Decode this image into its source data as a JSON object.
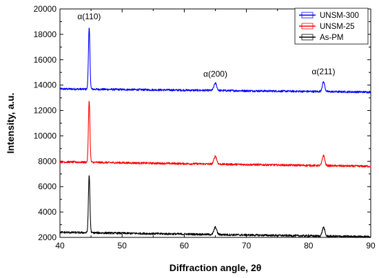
{
  "chart_data": {
    "type": "line",
    "title": "",
    "xlabel": "Diffraction angle, 2θ",
    "ylabel": "Intensity, a.u.",
    "xlim": [
      40,
      90
    ],
    "ylim": [
      2000,
      20000
    ],
    "x_ticks": [
      40,
      50,
      60,
      70,
      80,
      90
    ],
    "y_ticks": [
      2000,
      4000,
      6000,
      8000,
      10000,
      12000,
      14000,
      16000,
      18000,
      20000
    ],
    "grid": false,
    "legend_position": "top-right",
    "series": [
      {
        "name": "UNSM-300",
        "color": "#0000ff",
        "baseline": [
          [
            40,
            13700
          ],
          [
            90,
            13450
          ]
        ],
        "peaks": [
          {
            "x": 44.7,
            "y": 18500
          },
          {
            "x": 65.0,
            "y": 14150
          },
          {
            "x": 82.4,
            "y": 14250
          }
        ]
      },
      {
        "name": "UNSM-25",
        "color": "#ff0000",
        "baseline": [
          [
            40,
            7950
          ],
          [
            90,
            7600
          ]
        ],
        "peaks": [
          {
            "x": 44.7,
            "y": 12800
          },
          {
            "x": 65.0,
            "y": 8400
          },
          {
            "x": 82.4,
            "y": 8450
          }
        ]
      },
      {
        "name": "As-PM",
        "color": "#000000",
        "baseline": [
          [
            40,
            2400
          ],
          [
            90,
            2050
          ]
        ],
        "peaks": [
          {
            "x": 44.7,
            "y": 6900
          },
          {
            "x": 65.0,
            "y": 2800
          },
          {
            "x": 82.4,
            "y": 2800
          }
        ]
      }
    ],
    "annotations": [
      {
        "text": "α(110)",
        "x": 44.7,
        "y": 19200
      },
      {
        "text": "α(200)",
        "x": 65.0,
        "y": 14650
      },
      {
        "text": "α(211)",
        "x": 82.4,
        "y": 14850
      }
    ]
  }
}
